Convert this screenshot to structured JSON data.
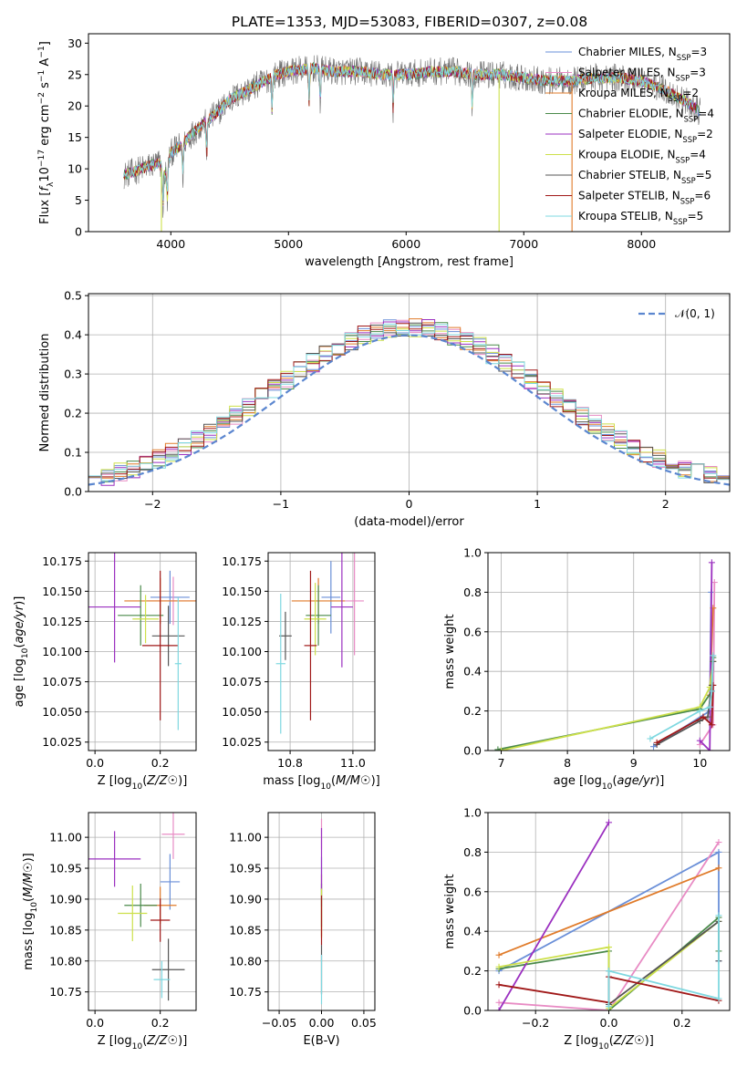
{
  "figure_title": "PLATE=1353, MJD=53083, FIBERID=0307, z=0.08",
  "models": [
    {
      "name": "Chabrier MILES, N$_{SSP}$=3",
      "color": "#6a8fd8"
    },
    {
      "name": "Salpeter MILES, N$_{SSP}$=3",
      "color": "#e88bc4"
    },
    {
      "name": "Kroupa MILES, N$_{SSP}$=2",
      "color": "#e07b2a"
    },
    {
      "name": "Chabrier ELODIE, N$_{SSP}$=4",
      "color": "#4a8a4a"
    },
    {
      "name": "Salpeter ELODIE, N$_{SSP}$=2",
      "color": "#9b30c0"
    },
    {
      "name": "Kroupa ELODIE, N$_{SSP}$=4",
      "color": "#cde04a"
    },
    {
      "name": "Chabrier STELIB, N$_{SSP}$=5",
      "color": "#555555"
    },
    {
      "name": "Salpeter STELIB, N$_{SSP}$=6",
      "color": "#a01818"
    },
    {
      "name": "Kroupa STELIB, N$_{SSP}$=5",
      "color": "#7fd8e0"
    }
  ],
  "chart_data": [
    {
      "id": "spectrum",
      "type": "line",
      "xlabel": "wavelength [Angstrom, rest frame]",
      "ylabel": "Flux [f_λ10^-17 erg cm^-2 s^-1 A^-1]",
      "xlim": [
        3300,
        8750
      ],
      "ylim": [
        0,
        31.5
      ],
      "xticks": [
        4000,
        5000,
        6000,
        7000,
        8000
      ],
      "yticks": [
        0,
        5,
        10,
        15,
        20,
        25,
        30
      ],
      "grid": false,
      "legend": "right",
      "continuum": {
        "x": [
          3600,
          3750,
          3900,
          3950,
          4000,
          4100,
          4200,
          4300,
          4400,
          4500,
          4600,
          4700,
          4800,
          4900,
          5000,
          5200,
          5400,
          5600,
          5800,
          6000,
          6200,
          6400,
          6600,
          6800,
          7000,
          7200,
          7400,
          7600,
          7800,
          8000,
          8200,
          8400,
          8500
        ],
        "y": [
          9,
          10,
          11,
          9,
          12.5,
          14,
          16,
          17.5,
          19,
          21,
          22,
          23,
          24,
          25,
          25.5,
          26,
          25.5,
          25.5,
          25,
          25,
          25.5,
          25.5,
          25,
          25,
          24.5,
          24,
          24,
          24.5,
          24.5,
          24,
          22.5,
          20.5,
          19
        ]
      },
      "absorption_lines": [
        3934,
        3969,
        4102,
        4305,
        4861,
        5175,
        5270,
        5890,
        6563
      ],
      "spikes": [
        3920,
        6790,
        7410
      ]
    },
    {
      "id": "residuals",
      "type": "histogram",
      "xlabel": "(data-model)/error",
      "ylabel": "Normed distribution",
      "xlim": [
        -2.5,
        2.5
      ],
      "ylim": [
        0,
        0.505
      ],
      "xticks": [
        -2,
        -1,
        0,
        1,
        2
      ],
      "yticks": [
        0.0,
        0.1,
        0.2,
        0.3,
        0.4,
        0.5
      ],
      "grid": true,
      "bin_width": 0.1,
      "legend": "top-right",
      "reference": {
        "name": "$\\mathcal{N}(0,1)$",
        "color": "#5b86cf",
        "mu": 0,
        "sigma": 1
      }
    },
    {
      "id": "age-vs-Z",
      "type": "errorbar",
      "xlabel": "Z [log10(Z/Z☉)]",
      "ylabel": "age  [log10(age/yr)]",
      "xlim": [
        -0.02,
        0.31
      ],
      "ylim": [
        10.018,
        10.182
      ],
      "xticks": [
        0.0,
        0.2
      ],
      "yticks": [
        10.025,
        10.05,
        10.075,
        10.1,
        10.125,
        10.15,
        10.175
      ],
      "grid": true,
      "points": [
        {
          "m": 0,
          "x": 0.23,
          "y": 10.145,
          "xerr": 0.06,
          "yerr": 0.022
        },
        {
          "m": 1,
          "x": 0.24,
          "y": 10.142,
          "xerr": 0.08,
          "yerr": 0.02
        },
        {
          "m": 2,
          "x": 0.2,
          "y": 10.142,
          "xerr": 0.11,
          "yerr": 0.019
        },
        {
          "m": 3,
          "x": 0.14,
          "y": 10.13,
          "xerr": 0.07,
          "yerr": 0.025
        },
        {
          "m": 4,
          "x": 0.06,
          "y": 10.137,
          "xerr": 0.08,
          "yerr": 0.046
        },
        {
          "m": 5,
          "x": 0.155,
          "y": 10.127,
          "xerr": 0.04,
          "yerr": 0.02
        },
        {
          "m": 6,
          "x": 0.225,
          "y": 10.113,
          "xerr": 0.05,
          "yerr": 0.025
        },
        {
          "m": 7,
          "x": 0.2,
          "y": 10.105,
          "xerr": 0.055,
          "yerr": 0.062
        },
        {
          "m": 8,
          "x": 0.255,
          "y": 10.09,
          "xerr": 0.01,
          "yerr": 0.055
        }
      ]
    },
    {
      "id": "age-vs-mass",
      "type": "errorbar",
      "xlabel": "mass [log10(M/M☉)]",
      "xlim": [
        10.73,
        11.07
      ],
      "ylim": [
        10.018,
        10.182
      ],
      "xticks": [
        10.8,
        11.0
      ],
      "yticks": [
        10.025,
        10.05,
        10.075,
        10.1,
        10.125,
        10.15,
        10.175
      ],
      "grid": true,
      "points": [
        {
          "m": 0,
          "x": 10.93,
          "y": 10.145,
          "xerr": 0.03,
          "yerr": 0.03
        },
        {
          "m": 1,
          "x": 11.005,
          "y": 10.142,
          "xerr": 0.03,
          "yerr": 0.045
        },
        {
          "m": 2,
          "x": 10.89,
          "y": 10.142,
          "xerr": 0.085,
          "yerr": 0.019
        },
        {
          "m": 3,
          "x": 10.89,
          "y": 10.13,
          "xerr": 0.04,
          "yerr": 0.025
        },
        {
          "m": 4,
          "x": 10.965,
          "y": 10.137,
          "xerr": 0.035,
          "yerr": 0.05
        },
        {
          "m": 5,
          "x": 10.88,
          "y": 10.127,
          "xerr": 0.035,
          "yerr": 0.03
        },
        {
          "m": 6,
          "x": 10.785,
          "y": 10.113,
          "xerr": 0.02,
          "yerr": 0.02
        },
        {
          "m": 7,
          "x": 10.865,
          "y": 10.105,
          "xerr": 0.02,
          "yerr": 0.062
        },
        {
          "m": 8,
          "x": 10.77,
          "y": 10.09,
          "xerr": 0.015,
          "yerr": 0.058
        }
      ]
    },
    {
      "id": "weight-vs-age",
      "type": "line",
      "xlabel": "age  [log10(age/yr)]",
      "ylabel": "mass weight",
      "xlim": [
        6.8,
        10.45
      ],
      "ylim": [
        0,
        1.0
      ],
      "xticks": [
        7,
        8,
        9,
        10
      ],
      "yticks": [
        0.0,
        0.2,
        0.4,
        0.6,
        0.8,
        1.0
      ],
      "grid": true,
      "series": [
        {
          "m": 0,
          "x": [
            9.3,
            10.15,
            10.17
          ],
          "y": [
            0.02,
            0.2,
            0.8
          ]
        },
        {
          "m": 1,
          "x": [
            10.0,
            10.2,
            10.22
          ],
          "y": [
            0.03,
            0.13,
            0.85
          ]
        },
        {
          "m": 2,
          "x": [
            10.15,
            10.2
          ],
          "y": [
            0.28,
            0.72
          ]
        },
        {
          "m": 3,
          "x": [
            6.95,
            10.0,
            10.18,
            10.2
          ],
          "y": [
            0.005,
            0.21,
            0.3,
            0.47
          ]
        },
        {
          "m": 4,
          "x": [
            10.0,
            10.15,
            10.18
          ],
          "y": [
            0.05,
            0.0,
            0.95
          ]
        },
        {
          "m": 5,
          "x": [
            7.0,
            10.0,
            10.15,
            10.2
          ],
          "y": [
            0.0,
            0.22,
            0.32,
            0.45
          ]
        },
        {
          "m": 6,
          "x": [
            9.35,
            10.0,
            10.12,
            10.18,
            10.2
          ],
          "y": [
            0.03,
            0.15,
            0.17,
            0.33,
            0.45
          ]
        },
        {
          "m": 7,
          "x": [
            9.35,
            10.05,
            10.18,
            10.2
          ],
          "y": [
            0.04,
            0.17,
            0.13,
            0.33
          ]
        },
        {
          "m": 8,
          "x": [
            9.25,
            10.0,
            10.15,
            10.18,
            10.2
          ],
          "y": [
            0.06,
            0.2,
            0.22,
            0.3,
            0.48
          ]
        }
      ]
    },
    {
      "id": "mass-vs-Z",
      "type": "errorbar",
      "xlabel": "Z [log10(Z/Z☉)]",
      "ylabel": "mass [log10(M/M☉)]",
      "xlim": [
        -0.02,
        0.31
      ],
      "ylim": [
        10.72,
        11.04
      ],
      "xticks": [
        0.0,
        0.2
      ],
      "yticks": [
        10.75,
        10.8,
        10.85,
        10.9,
        10.95,
        11.0
      ],
      "grid": true,
      "points": [
        {
          "m": 0,
          "x": 0.23,
          "y": 10.928,
          "xerr": 0.03,
          "yerr": 0.045
        },
        {
          "m": 1,
          "x": 0.24,
          "y": 11.005,
          "xerr": 0.035,
          "yerr": 0.04
        },
        {
          "m": 2,
          "x": 0.2,
          "y": 10.89,
          "xerr": 0.05,
          "yerr": 0.03
        },
        {
          "m": 3,
          "x": 0.14,
          "y": 10.89,
          "xerr": 0.05,
          "yerr": 0.035
        },
        {
          "m": 4,
          "x": 0.06,
          "y": 10.965,
          "xerr": 0.08,
          "yerr": 0.045
        },
        {
          "m": 5,
          "x": 0.115,
          "y": 10.877,
          "xerr": 0.045,
          "yerr": 0.045
        },
        {
          "m": 6,
          "x": 0.225,
          "y": 10.786,
          "xerr": 0.05,
          "yerr": 0.05
        },
        {
          "m": 7,
          "x": 0.2,
          "y": 10.866,
          "xerr": 0.03,
          "yerr": 0.035
        },
        {
          "m": 8,
          "x": 0.205,
          "y": 10.77,
          "xerr": 0.025,
          "yerr": 0.03
        }
      ]
    },
    {
      "id": "mass-vs-ebv",
      "type": "errorbar",
      "xlabel": "E(B-V)",
      "xlim": [
        -0.063,
        0.063
      ],
      "ylim": [
        10.72,
        11.04
      ],
      "xticks": [
        -0.05,
        0.0,
        0.05
      ],
      "yticks": [
        10.75,
        10.8,
        10.85,
        10.9,
        10.95,
        11.0
      ],
      "grid": true,
      "points": [
        {
          "m": 0,
          "x": 0.0,
          "y": 10.928,
          "xerr": 0,
          "yerr": 0.04
        },
        {
          "m": 1,
          "x": 0.0,
          "y": 11.005,
          "xerr": 0,
          "yerr": 0.025
        },
        {
          "m": 2,
          "x": 0.0,
          "y": 10.89,
          "xerr": 0,
          "yerr": 0.05
        },
        {
          "m": 3,
          "x": 0.0,
          "y": 10.89,
          "xerr": 0,
          "yerr": 0.035
        },
        {
          "m": 4,
          "x": 0.0,
          "y": 10.965,
          "xerr": 0,
          "yerr": 0.05
        },
        {
          "m": 5,
          "x": 0.0,
          "y": 10.877,
          "xerr": 0,
          "yerr": 0.04
        },
        {
          "m": 6,
          "x": 0.0,
          "y": 10.786,
          "xerr": 0,
          "yerr": 0.04
        },
        {
          "m": 7,
          "x": 0.0,
          "y": 10.866,
          "xerr": 0,
          "yerr": 0.04
        },
        {
          "m": 8,
          "x": 0.0,
          "y": 10.77,
          "xerr": 0,
          "yerr": 0.04
        }
      ]
    },
    {
      "id": "weight-vs-Z",
      "type": "line",
      "xlabel": "Z [log10(Z/Z☉)]",
      "ylabel": "mass weight",
      "xlim": [
        -0.33,
        0.33
      ],
      "ylim": [
        0,
        1.0
      ],
      "xticks": [
        -0.2,
        0.0,
        0.2
      ],
      "yticks": [
        0.0,
        0.2,
        0.4,
        0.6,
        0.8,
        1.0
      ],
      "grid": true,
      "series": [
        {
          "m": 0,
          "x": [
            -0.3,
            0.3,
            0.3
          ],
          "y": [
            0.2,
            0.8,
            0.25
          ]
        },
        {
          "m": 1,
          "x": [
            -0.3,
            0.0,
            0.3
          ],
          "y": [
            0.04,
            0.0,
            0.85
          ]
        },
        {
          "m": 2,
          "x": [
            -0.3,
            0.3
          ],
          "y": [
            0.28,
            0.72
          ]
        },
        {
          "m": 3,
          "x": [
            -0.3,
            0.0,
            0.0,
            0.3,
            0.3
          ],
          "y": [
            0.21,
            0.3,
            0.0,
            0.47,
            0.3
          ]
        },
        {
          "m": 4,
          "x": [
            -0.3,
            0.0
          ],
          "y": [
            0.0,
            0.95
          ]
        },
        {
          "m": 5,
          "x": [
            -0.3,
            0.0,
            0.0,
            0.3
          ],
          "y": [
            0.22,
            0.32,
            0.01,
            0.45
          ]
        },
        {
          "m": 6,
          "x": [
            0.0,
            0.0,
            0.3,
            0.3
          ],
          "y": [
            0.2,
            0.03,
            0.45,
            0.25
          ]
        },
        {
          "m": 7,
          "x": [
            -0.3,
            0.0,
            0.0,
            0.3
          ],
          "y": [
            0.13,
            0.04,
            0.17,
            0.05
          ]
        },
        {
          "m": 8,
          "x": [
            0.0,
            0.0,
            0.3,
            0.3
          ],
          "y": [
            0.02,
            0.2,
            0.06,
            0.48
          ]
        }
      ]
    }
  ]
}
